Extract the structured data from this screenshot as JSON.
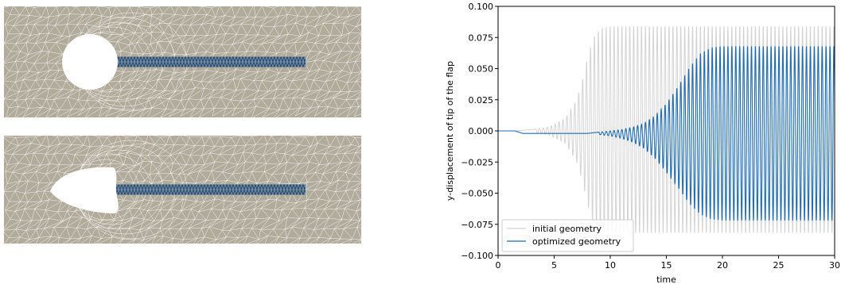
{
  "figure": {
    "mesh_panels": [
      {
        "obstacle": "circle",
        "flap_color": "#2f4f6f",
        "fluid_color": "#b1ab9b"
      },
      {
        "obstacle": "optimized-shape",
        "flap_color": "#2f4f6f",
        "fluid_color": "#b1ab9b"
      }
    ]
  },
  "chart_data": {
    "type": "line",
    "xlabel": "time",
    "ylabel": "y-displacement of tip of the flap",
    "xlim": [
      0,
      30
    ],
    "ylim": [
      -0.1,
      0.1
    ],
    "xticks": [
      0,
      5,
      10,
      15,
      20,
      25,
      30
    ],
    "yticks": [
      -0.1,
      -0.075,
      -0.05,
      -0.025,
      0.0,
      0.025,
      0.05,
      0.075,
      0.1
    ],
    "ytick_labels": [
      "−0.100",
      "−0.075",
      "−0.050",
      "−0.025",
      "0.000",
      "0.025",
      "0.050",
      "0.075",
      "0.100"
    ],
    "xtick_labels": [
      "0",
      "5",
      "10",
      "15",
      "20",
      "25",
      "30"
    ],
    "grid": false,
    "legend_position": "bottom-left",
    "series": [
      {
        "name": "initial geometry",
        "color": "#d3d3d3",
        "oscillation": {
          "period": 0.35,
          "baseline": 0.0,
          "onset_time": 1.5,
          "envelope": [
            [
              0,
              0
            ],
            [
              1.5,
              0
            ],
            [
              3,
              0.001
            ],
            [
              4.5,
              0.003
            ],
            [
              6,
              0.01
            ],
            [
              7,
              0.025
            ],
            [
              7.5,
              0.04
            ],
            [
              8,
              0.06
            ],
            [
              8.5,
              0.075
            ],
            [
              9.2,
              0.083
            ],
            [
              10,
              0.084
            ],
            [
              30,
              0.084
            ]
          ],
          "min_envelope": [
            [
              0,
              0
            ],
            [
              1.5,
              0
            ],
            [
              3,
              -0.001
            ],
            [
              4.5,
              -0.003
            ],
            [
              6,
              -0.01
            ],
            [
              7,
              -0.025
            ],
            [
              7.5,
              -0.04
            ],
            [
              8,
              -0.06
            ],
            [
              8.5,
              -0.075
            ],
            [
              9.2,
              -0.082
            ],
            [
              10,
              -0.082
            ],
            [
              30,
              -0.082
            ]
          ]
        }
      },
      {
        "name": "optimized geometry",
        "color": "#1f6eb4",
        "oscillation": {
          "period": 0.35,
          "baseline": -0.002,
          "onset_time": 1.5,
          "envelope": [
            [
              0,
              0
            ],
            [
              1.5,
              0
            ],
            [
              2.2,
              -0.002
            ],
            [
              8,
              -0.002
            ],
            [
              10,
              0.0
            ],
            [
              11,
              0.001
            ],
            [
              12,
              0.003
            ],
            [
              13,
              0.006
            ],
            [
              14,
              0.012
            ],
            [
              15,
              0.022
            ],
            [
              16,
              0.035
            ],
            [
              17,
              0.05
            ],
            [
              18,
              0.062
            ],
            [
              19,
              0.067
            ],
            [
              20,
              0.068
            ],
            [
              30,
              0.068
            ]
          ],
          "min_envelope": [
            [
              0,
              0
            ],
            [
              1.5,
              0
            ],
            [
              2.2,
              -0.002
            ],
            [
              8,
              -0.002
            ],
            [
              10,
              -0.004
            ],
            [
              11,
              -0.006
            ],
            [
              12,
              -0.009
            ],
            [
              13,
              -0.014
            ],
            [
              14,
              -0.022
            ],
            [
              15,
              -0.033
            ],
            [
              16,
              -0.045
            ],
            [
              17,
              -0.058
            ],
            [
              18,
              -0.067
            ],
            [
              19,
              -0.071
            ],
            [
              20,
              -0.072
            ],
            [
              30,
              -0.072
            ]
          ]
        }
      }
    ]
  }
}
